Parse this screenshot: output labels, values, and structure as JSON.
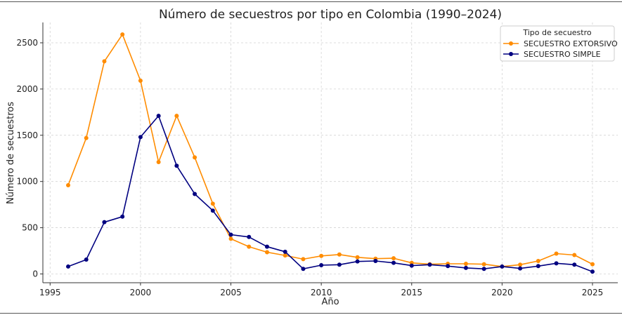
{
  "chart_data": {
    "type": "line",
    "title": "Número de secuestros por tipo en Colombia (1990–2024)",
    "xlabel": "Año",
    "ylabel": "Número de secuestros",
    "xlim": [
      1995,
      2025
    ],
    "ylim": [
      0,
      2700
    ],
    "x_ticks": [
      1995,
      2000,
      2005,
      2010,
      2015,
      2020,
      2025
    ],
    "y_ticks": [
      0,
      500,
      1000,
      1500,
      2000,
      2500
    ],
    "grid": true,
    "legend": {
      "title": "Tipo de secuestro",
      "placement": "top-right"
    },
    "x": [
      1996,
      1997,
      1998,
      1999,
      2000,
      2001,
      2002,
      2003,
      2004,
      2005,
      2006,
      2007,
      2008,
      2009,
      2010,
      2011,
      2012,
      2013,
      2014,
      2015,
      2016,
      2017,
      2018,
      2019,
      2020,
      2021,
      2022,
      2023,
      2024,
      2025
    ],
    "series": [
      {
        "name": "SECUESTRO EXTORSIVO",
        "color": "#ff8c00",
        "values": [
          960,
          1470,
          2300,
          2590,
          2090,
          1210,
          1710,
          1260,
          760,
          380,
          295,
          235,
          200,
          160,
          195,
          210,
          180,
          165,
          170,
          120,
          105,
          110,
          110,
          105,
          80,
          100,
          140,
          220,
          205,
          105
        ]
      },
      {
        "name": "SECUESTRO SIMPLE",
        "color": "#000080",
        "values": [
          80,
          155,
          560,
          620,
          1480,
          1710,
          1170,
          865,
          685,
          425,
          400,
          295,
          240,
          55,
          95,
          100,
          135,
          140,
          120,
          90,
          100,
          85,
          65,
          55,
          80,
          60,
          85,
          115,
          100,
          25
        ]
      }
    ]
  }
}
